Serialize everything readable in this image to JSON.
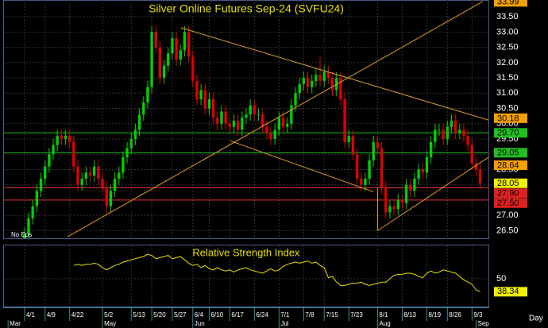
{
  "chart_data": [
    {
      "type": "candlestick",
      "title": "Silver Online Futures Sep-24 (SVFU24)",
      "note": "No Eps",
      "x_unit_label": "Day",
      "up_color": "#00d000",
      "down_color": "#e00000",
      "open": [
        26.2,
        26.4,
        26.9,
        27.3,
        27.8,
        28.2,
        28.6,
        29.0,
        29.3,
        29.6,
        29.5,
        29.6,
        29.4,
        28.6,
        28.0,
        28.2,
        28.4,
        28.3,
        28.6,
        28.2,
        27.9,
        27.3,
        27.8,
        28.2,
        28.4,
        28.9,
        29.2,
        29.5,
        29.8,
        30.3,
        30.7,
        31.2,
        33.0,
        32.5,
        31.5,
        31.9,
        32.3,
        32.8,
        32.1,
        32.4,
        33.0,
        32.2,
        31.4,
        30.8,
        31.1,
        30.5,
        30.8,
        30.2,
        30.0,
        30.4,
        30.0,
        29.9,
        30.1,
        29.8,
        30.2,
        30.3,
        30.6,
        30.3,
        30.3,
        29.9,
        29.7,
        29.5,
        29.8,
        30.2,
        29.9,
        30.0,
        30.6,
        31.0,
        31.3,
        31.5,
        31.2,
        31.4,
        31.6,
        31.4,
        31.7,
        31.5,
        31.1,
        31.5,
        30.8,
        29.4,
        29.6,
        29.0,
        28.2,
        28.0,
        28.2,
        28.8,
        29.4,
        29.2,
        27.9,
        27.1,
        27.3,
        27.2,
        27.5,
        27.4,
        28.0,
        27.8,
        28.2,
        28.5,
        28.4,
        28.9,
        29.4,
        29.8,
        29.8,
        29.5,
        29.9,
        30.1,
        29.7,
        29.8,
        29.6,
        29.3,
        28.7,
        28.5
      ],
      "high": [
        26.6,
        27.1,
        27.5,
        28.0,
        28.4,
        28.8,
        29.2,
        29.5,
        29.8,
        29.8,
        29.8,
        29.8,
        29.6,
        28.8,
        28.4,
        28.6,
        28.6,
        28.8,
        28.8,
        28.4,
        28.1,
        28.0,
        28.4,
        28.6,
        29.1,
        29.4,
        29.7,
        30.0,
        30.5,
        30.9,
        31.4,
        33.2,
        33.2,
        32.7,
        32.1,
        32.5,
        33.0,
        33.0,
        32.6,
        33.2,
        33.2,
        32.4,
        31.6,
        31.3,
        31.3,
        31.0,
        31.0,
        30.4,
        30.6,
        30.6,
        30.2,
        30.3,
        30.3,
        30.4,
        30.5,
        30.8,
        30.8,
        30.5,
        30.5,
        30.1,
        29.9,
        30.0,
        30.4,
        30.4,
        30.2,
        30.8,
        31.2,
        31.5,
        31.7,
        31.7,
        31.6,
        31.8,
        32.2,
        31.9,
        31.9,
        31.7,
        31.7,
        31.7,
        31.0,
        29.8,
        29.8,
        29.2,
        28.4,
        28.4,
        29.0,
        29.6,
        29.6,
        29.4,
        28.1,
        27.5,
        27.5,
        27.7,
        27.7,
        28.2,
        28.2,
        28.4,
        28.7,
        28.7,
        29.1,
        29.6,
        30.0,
        30.0,
        30.0,
        30.1,
        30.3,
        30.3,
        30.0,
        30.0,
        29.8,
        29.5,
        28.9,
        28.7
      ],
      "low": [
        26.0,
        26.2,
        26.7,
        27.1,
        27.6,
        28.0,
        28.4,
        28.8,
        29.1,
        29.3,
        29.3,
        29.2,
        28.4,
        27.8,
        27.8,
        28.0,
        28.1,
        28.1,
        28.0,
        27.7,
        27.0,
        27.1,
        27.6,
        28.0,
        28.2,
        28.7,
        29.0,
        29.3,
        29.6,
        30.1,
        30.5,
        31.0,
        32.3,
        31.3,
        31.3,
        31.7,
        32.1,
        31.9,
        31.9,
        32.2,
        32.0,
        31.2,
        30.6,
        30.6,
        30.3,
        30.3,
        30.0,
        29.8,
        29.8,
        29.8,
        29.7,
        29.7,
        29.6,
        29.6,
        30.0,
        30.1,
        30.1,
        30.1,
        29.7,
        29.5,
        29.3,
        29.3,
        29.6,
        29.7,
        29.7,
        29.8,
        30.4,
        30.8,
        31.1,
        31.0,
        31.0,
        31.2,
        31.2,
        31.2,
        31.3,
        30.9,
        30.9,
        30.6,
        29.2,
        29.2,
        28.8,
        28.0,
        27.8,
        27.8,
        28.0,
        28.6,
        29.0,
        27.7,
        26.9,
        26.9,
        27.0,
        27.0,
        27.2,
        27.2,
        27.6,
        27.6,
        28.0,
        28.2,
        28.2,
        28.7,
        29.2,
        29.6,
        29.3,
        29.3,
        29.7,
        29.5,
        29.5,
        29.4,
        29.1,
        28.5,
        28.3,
        27.85
      ],
      "close": [
        26.4,
        26.9,
        27.3,
        27.8,
        28.2,
        28.6,
        29.0,
        29.3,
        29.6,
        29.5,
        29.6,
        29.4,
        28.6,
        28.0,
        28.2,
        28.4,
        28.3,
        28.6,
        28.2,
        27.9,
        27.3,
        27.8,
        28.2,
        28.4,
        28.9,
        29.2,
        29.5,
        29.8,
        30.3,
        30.7,
        31.2,
        33.0,
        32.5,
        31.5,
        31.9,
        32.3,
        32.8,
        32.1,
        32.4,
        33.0,
        32.2,
        31.4,
        30.8,
        31.1,
        30.5,
        30.8,
        30.2,
        30.0,
        30.4,
        30.0,
        29.9,
        30.1,
        29.8,
        30.2,
        30.3,
        30.6,
        30.3,
        30.3,
        29.9,
        29.7,
        29.5,
        29.8,
        30.2,
        29.9,
        30.0,
        30.6,
        31.0,
        31.3,
        31.5,
        31.2,
        31.4,
        31.6,
        31.4,
        31.7,
        31.5,
        31.1,
        31.5,
        30.8,
        29.4,
        29.6,
        29.0,
        28.2,
        28.0,
        28.2,
        28.8,
        29.4,
        29.2,
        27.9,
        27.1,
        27.3,
        27.2,
        27.5,
        27.4,
        28.0,
        27.8,
        28.2,
        28.5,
        28.4,
        28.9,
        29.4,
        29.8,
        29.8,
        29.5,
        29.9,
        30.1,
        29.7,
        29.8,
        29.6,
        29.3,
        28.7,
        28.5,
        28.05
      ],
      "xlim": [
        -5,
        113
      ],
      "ylim": [
        26.25,
        34.05
      ],
      "xticks": [
        {
          "value": 0,
          "label": "4/1"
        },
        {
          "value": 5,
          "label": "4/9"
        },
        {
          "value": 11,
          "label": "4/22"
        },
        {
          "value": 19,
          "label": "5/2"
        },
        {
          "value": 26,
          "label": "5/13"
        },
        {
          "value": 31,
          "label": "5/20"
        },
        {
          "value": 36,
          "label": "5/27"
        },
        {
          "value": 41,
          "label": "6/4"
        },
        {
          "value": 45,
          "label": "6/10"
        },
        {
          "value": 50,
          "label": "6/17"
        },
        {
          "value": 56,
          "label": "6/24"
        },
        {
          "value": 62,
          "label": "7/1"
        },
        {
          "value": 68,
          "label": "7/8"
        },
        {
          "value": 73,
          "label": "7/15"
        },
        {
          "value": 79,
          "label": "7/23"
        },
        {
          "value": 86,
          "label": "8/1"
        },
        {
          "value": 92,
          "label": "8/13"
        },
        {
          "value": 98,
          "label": "8/19"
        },
        {
          "value": 103,
          "label": "8/26"
        },
        {
          "value": 109,
          "label": "9/3"
        }
      ],
      "month_ticks": [
        {
          "value": -4,
          "label": "Mar"
        },
        {
          "value": 19,
          "label": "May"
        },
        {
          "value": 41,
          "label": "Jun"
        },
        {
          "value": 62,
          "label": "Jul"
        },
        {
          "value": 86,
          "label": "Aug"
        },
        {
          "value": 110,
          "label": "Sep"
        }
      ],
      "yticks": [
        {
          "value": 26.5,
          "label": "26.50"
        },
        {
          "value": 27,
          "label": "27.00"
        },
        {
          "value": 27.5,
          "label": "27.50"
        },
        {
          "value": 28,
          "label": "28.00"
        },
        {
          "value": 28.5,
          "label": "28.50"
        },
        {
          "value": 29,
          "label": "29.00"
        },
        {
          "value": 29.5,
          "label": "29.50"
        },
        {
          "value": 30,
          "label": "30.00"
        },
        {
          "value": 30.5,
          "label": "30.50"
        },
        {
          "value": 31,
          "label": "31.00"
        },
        {
          "value": 31.5,
          "label": "31.50"
        },
        {
          "value": 32,
          "label": "32.00"
        },
        {
          "value": 32.5,
          "label": "32.50"
        },
        {
          "value": 33,
          "label": "33.00"
        },
        {
          "value": 33.5,
          "label": "33.50"
        }
      ],
      "grid": true,
      "hlines": [
        {
          "value": 29.7,
          "color": "#20c020"
        },
        {
          "value": 29.05,
          "color": "#20c020"
        },
        {
          "value": 27.9,
          "color": "#e03030"
        },
        {
          "value": 27.5,
          "color": "#e03030"
        }
      ],
      "trendline_color": "#e0a020",
      "trendlines": [
        [
          [
            10.5,
            26.3
          ],
          [
            111.6,
            34.0
          ]
        ],
        [
          [
            38.1,
            33.14
          ],
          [
            113,
            30.12
          ]
        ],
        [
          [
            50.1,
            29.44
          ],
          [
            85,
            27.77
          ]
        ],
        [
          [
            86,
            26.5
          ],
          [
            113,
            28.9
          ]
        ],
        [
          [
            86,
            26.5
          ],
          [
            86,
            27.9
          ]
        ]
      ],
      "price_labels": [
        {
          "value": 33.99,
          "label": "33.99",
          "color": "#f5a000"
        },
        {
          "value": 30.18,
          "label": "30.18",
          "color": "#f5a000"
        },
        {
          "value": 29.7,
          "label": "29.70",
          "color": "#20c020"
        },
        {
          "value": 29.05,
          "label": "29.05",
          "color": "#20c020"
        },
        {
          "value": 28.64,
          "label": "28.64",
          "color": "#f5a000"
        },
        {
          "value": 28.05,
          "label": "28.05",
          "color": "#f0f000"
        },
        {
          "value": 27.9,
          "label": "27.90",
          "color": "#e02020"
        },
        {
          "value": 27.5,
          "label": "27.50",
          "color": "#e02020"
        }
      ]
    },
    {
      "type": "line",
      "title": "Relative Strength Index",
      "color": "#e8e000",
      "label_color": "#f0f000",
      "values": [
        null,
        null,
        null,
        null,
        null,
        null,
        null,
        null,
        null,
        null,
        null,
        null,
        62,
        63,
        62,
        63,
        63,
        64,
        63,
        60,
        58,
        60,
        62,
        63,
        65,
        66,
        67,
        68,
        69,
        70,
        72,
        71,
        68,
        69,
        70,
        71,
        68,
        69,
        70,
        67,
        64,
        62,
        63,
        60,
        62,
        59,
        58,
        60,
        58,
        57,
        58,
        56,
        58,
        59,
        60,
        58,
        57,
        56,
        55,
        57,
        59,
        57,
        58,
        61,
        63,
        64,
        65,
        64,
        65,
        66,
        64,
        65,
        62,
        60,
        51,
        52,
        47,
        44,
        44,
        45,
        46,
        46,
        47,
        45,
        44,
        45,
        46,
        47,
        47,
        50,
        53,
        54,
        54,
        55,
        55,
        54,
        52,
        51,
        55,
        57,
        55,
        56,
        58,
        57,
        56,
        55,
        52,
        49,
        47,
        45,
        40,
        38.34
      ],
      "ylim": [
        25,
        80
      ],
      "yticks": [
        50
      ]
    }
  ]
}
